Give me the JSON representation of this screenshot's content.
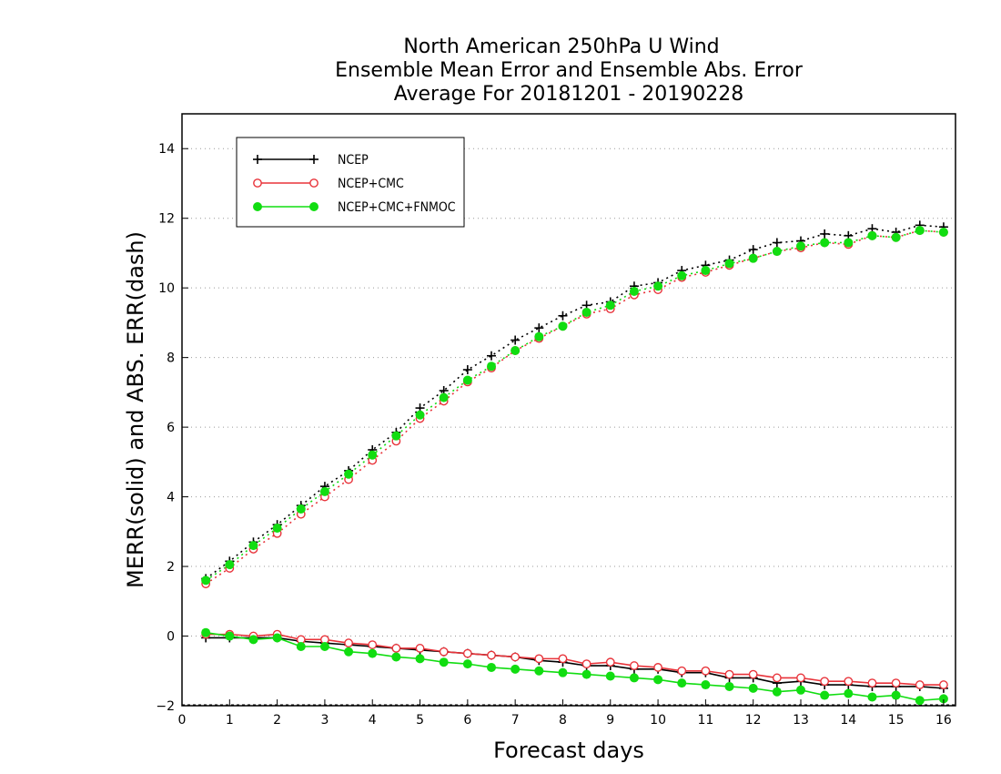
{
  "chart_data": {
    "type": "line",
    "title_lines": [
      "North American 250hPa U Wind",
      "Ensemble Mean Error and Ensemble Abs. Error",
      "Average For 20181201 - 20190228"
    ],
    "xlabel": "Forecast days",
    "ylabel": "MERR(solid) and ABS. ERR(dash)",
    "xlim": [
      0,
      16.25
    ],
    "ylim": [
      -2,
      15
    ],
    "xticks": [
      0,
      1,
      2,
      3,
      4,
      5,
      6,
      7,
      8,
      9,
      10,
      11,
      12,
      13,
      14,
      15,
      16
    ],
    "yticks": [
      -2,
      0,
      2,
      4,
      6,
      8,
      10,
      12,
      14
    ],
    "grid": "horizontal dotted",
    "legend_position": "top-left",
    "x": [
      0.5,
      1,
      1.5,
      2,
      2.5,
      3,
      3.5,
      4,
      4.5,
      5,
      5.5,
      6,
      6.5,
      7,
      7.5,
      8,
      8.5,
      9,
      9.5,
      10,
      10.5,
      11,
      11.5,
      12,
      12.5,
      13,
      13.5,
      14,
      14.5,
      15,
      15.5,
      16
    ],
    "series": [
      {
        "name": "NCEP",
        "color": "#000000",
        "marker": "plus",
        "merr": [
          -0.05,
          -0.05,
          -0.05,
          -0.05,
          -0.15,
          -0.2,
          -0.25,
          -0.3,
          -0.35,
          -0.4,
          -0.45,
          -0.5,
          -0.55,
          -0.6,
          -0.7,
          -0.75,
          -0.85,
          -0.85,
          -0.95,
          -0.95,
          -1.05,
          -1.05,
          -1.2,
          -1.2,
          -1.35,
          -1.3,
          -1.4,
          -1.4,
          -1.45,
          -1.45,
          -1.45,
          -1.5
        ],
        "abs_err": [
          1.65,
          2.15,
          2.7,
          3.2,
          3.75,
          4.3,
          4.75,
          5.35,
          5.85,
          6.55,
          7.05,
          7.65,
          8.05,
          8.5,
          8.85,
          9.2,
          9.5,
          9.6,
          10.05,
          10.15,
          10.5,
          10.65,
          10.8,
          11.1,
          11.3,
          11.35,
          11.55,
          11.5,
          11.7,
          11.6,
          11.8,
          11.75
        ]
      },
      {
        "name": "NCEP+CMC",
        "color": "#e8333a",
        "marker": "open-circle",
        "merr": [
          0.05,
          0.05,
          0.0,
          0.05,
          -0.1,
          -0.1,
          -0.2,
          -0.25,
          -0.35,
          -0.35,
          -0.45,
          -0.5,
          -0.55,
          -0.6,
          -0.65,
          -0.65,
          -0.8,
          -0.75,
          -0.85,
          -0.9,
          -1.0,
          -1.0,
          -1.1,
          -1.1,
          -1.2,
          -1.2,
          -1.3,
          -1.3,
          -1.35,
          -1.35,
          -1.4,
          -1.4
        ],
        "abs_err": [
          1.5,
          1.95,
          2.5,
          2.95,
          3.5,
          4.0,
          4.5,
          5.05,
          5.6,
          6.25,
          6.75,
          7.3,
          7.7,
          8.2,
          8.55,
          8.9,
          9.25,
          9.4,
          9.8,
          9.95,
          10.3,
          10.45,
          10.65,
          10.85,
          11.05,
          11.15,
          11.3,
          11.25,
          11.5,
          11.45,
          11.65,
          11.6
        ]
      },
      {
        "name": "NCEP+CMC+FNMOC",
        "color": "#11dd11",
        "marker": "filled-circle",
        "merr": [
          0.1,
          0.0,
          -0.1,
          -0.05,
          -0.3,
          -0.3,
          -0.45,
          -0.5,
          -0.6,
          -0.65,
          -0.75,
          -0.8,
          -0.9,
          -0.95,
          -1.0,
          -1.05,
          -1.1,
          -1.15,
          -1.2,
          -1.25,
          -1.35,
          -1.4,
          -1.45,
          -1.5,
          -1.6,
          -1.55,
          -1.7,
          -1.65,
          -1.75,
          -1.7,
          -1.85,
          -1.8
        ],
        "abs_err": [
          1.6,
          2.05,
          2.6,
          3.1,
          3.65,
          4.15,
          4.65,
          5.2,
          5.75,
          6.35,
          6.85,
          7.35,
          7.75,
          8.2,
          8.6,
          8.9,
          9.3,
          9.5,
          9.9,
          10.05,
          10.35,
          10.5,
          10.7,
          10.85,
          11.05,
          11.2,
          11.3,
          11.3,
          11.5,
          11.45,
          11.65,
          11.6
        ]
      }
    ]
  }
}
